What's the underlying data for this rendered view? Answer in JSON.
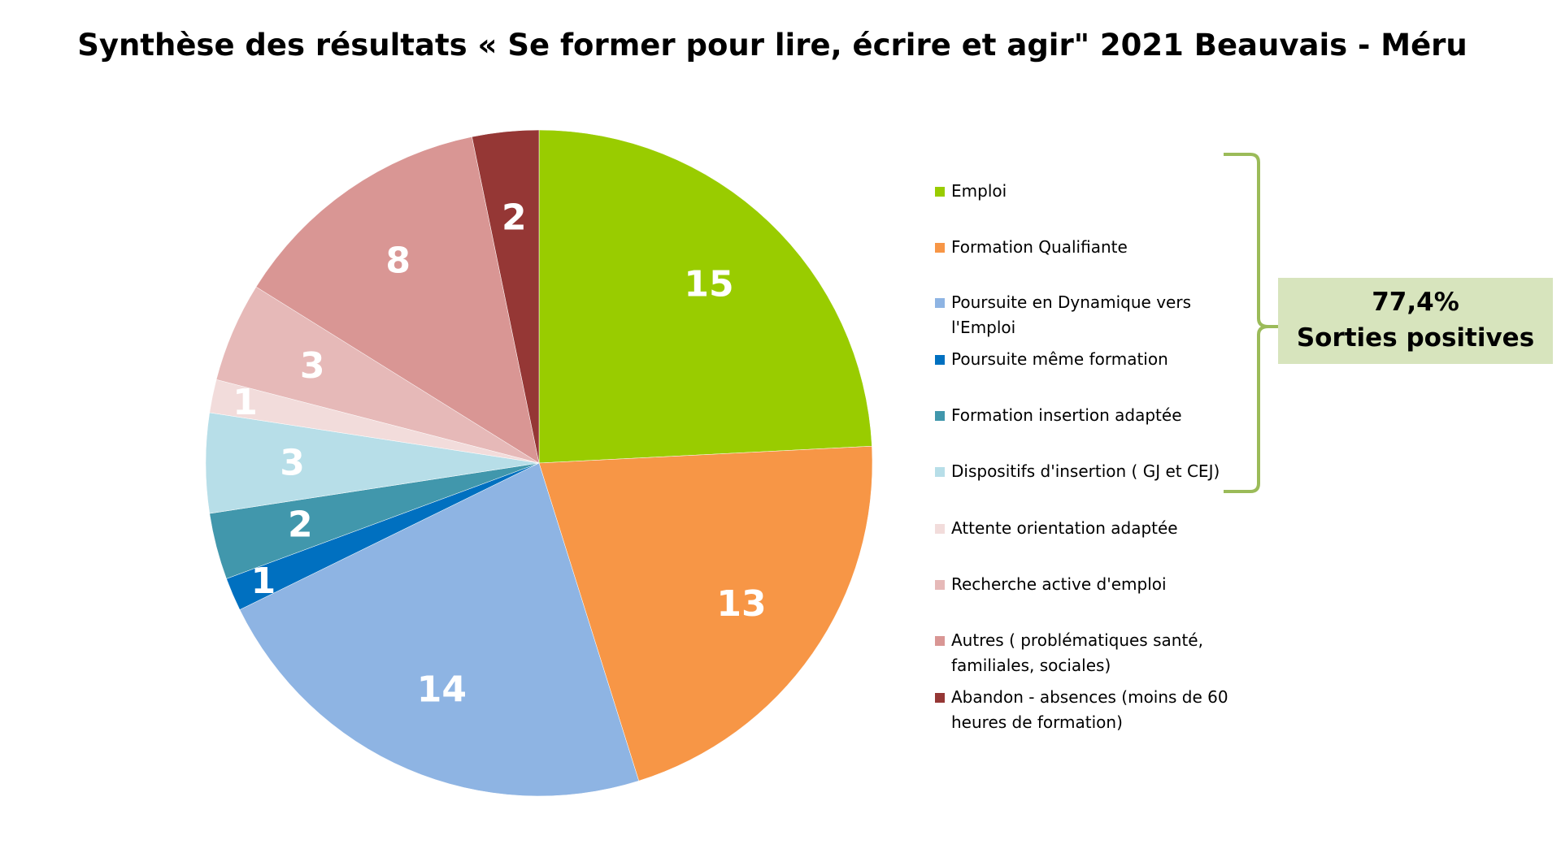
{
  "chart_data": {
    "type": "pie",
    "title": "Synthèse des résultats « Se former pour lire, écrire et agir\" 2021 Beauvais - Méru",
    "categories": [
      "Emploi",
      "Formation Qualifiante",
      " Poursuite en Dynamique vers l'Emploi",
      "Poursuite même formation",
      "Formation insertion adaptée",
      "Dispositifs d'insertion ( GJ et CEJ)",
      "Attente orientation adaptée",
      "Recherche active d'emploi",
      "Autres ( problématiques santé, familiales, sociales)",
      "Abandon - absences (moins de 60 heures de formation)"
    ],
    "values": [
      15,
      13,
      14,
      1,
      2,
      3,
      1,
      3,
      8,
      2
    ],
    "labels": [
      "15",
      "13",
      "14",
      "1",
      "2",
      "3",
      "1",
      "3",
      "8",
      "2"
    ],
    "colors": [
      "#99cc00",
      "#f79646",
      "#8eb4e3",
      "#0070c0",
      "#4197ac",
      "#b7dee8",
      "#f2dcdb",
      "#e6b9b8",
      "#d99694",
      "#953735"
    ],
    "legend_position": "right",
    "annotation": {
      "value": "77,4%",
      "text": "Sorties positives",
      "color": "#d7e4bd",
      "bracket_color": "#9bbb59"
    }
  }
}
